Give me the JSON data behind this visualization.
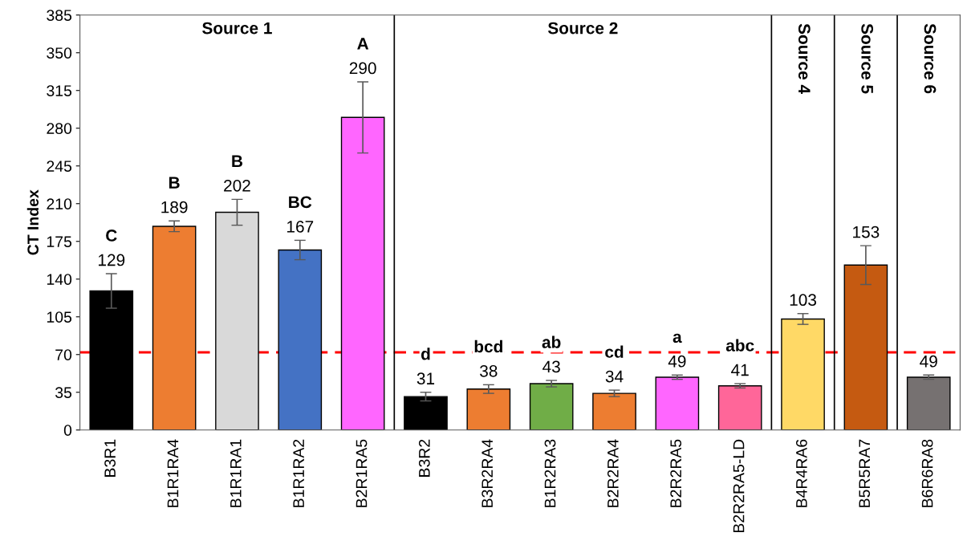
{
  "chart_data": {
    "type": "bar",
    "ylabel": "CT Index",
    "categories": [
      "B3R1",
      "B1R1RA4",
      "B1R1RA1",
      "B1R1RA2",
      "B2R1RA5",
      "B3R2",
      "B3R2RA4",
      "B1R2RA3",
      "B2R2RA4",
      "B2R2RA5",
      "B2R2RA5-LD",
      "B4R4RA6",
      "B5R5RA7",
      "B6R6RA8"
    ],
    "values": [
      129,
      189,
      202,
      167,
      290,
      31,
      38,
      43,
      34,
      49,
      41,
      103,
      153,
      49
    ],
    "errors": [
      16,
      5,
      12,
      9,
      33,
      4,
      4,
      3,
      3,
      2,
      2,
      5,
      18,
      2
    ],
    "colors": [
      "#000000",
      "#ed7d31",
      "#d9d9d9",
      "#4472c4",
      "#ff66ff",
      "#000000",
      "#ed7d31",
      "#70ad47",
      "#ed7d31",
      "#ff66ff",
      "#ff6699",
      "#ffd966",
      "#c55a11",
      "#767171"
    ],
    "data_labels": true,
    "ylim": [
      0,
      385
    ],
    "yticks": [
      0,
      35,
      70,
      105,
      140,
      175,
      210,
      245,
      280,
      315,
      350,
      385
    ],
    "grid": false,
    "ref_lines": [
      {
        "axis": "y",
        "value": 72,
        "color": "#ff0000",
        "line_style": "dashed"
      }
    ],
    "annotations": [
      "Source 1",
      "Source 2",
      "Source 4",
      "Source 5",
      "Source 6",
      "C",
      "B",
      "B",
      "BC",
      "A",
      "d",
      "bcd",
      "ab",
      "cd",
      "a",
      "abc"
    ]
  }
}
